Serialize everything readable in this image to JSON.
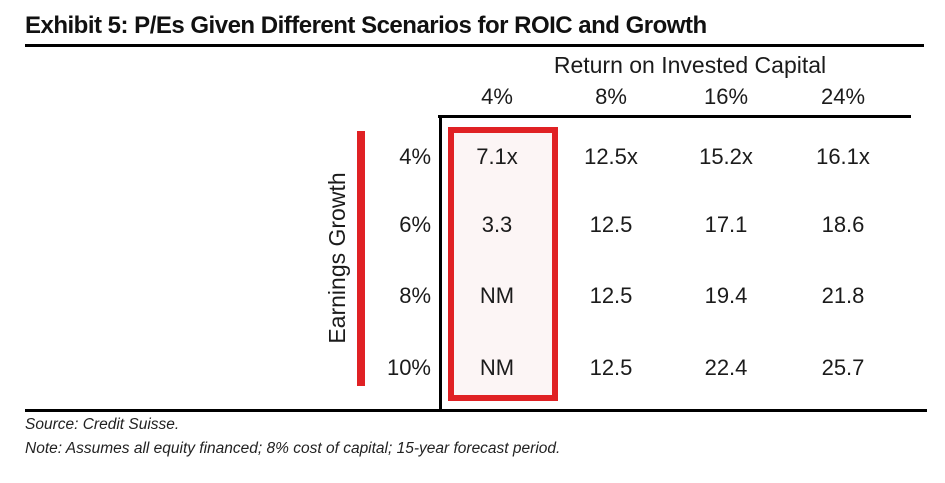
{
  "title": "Exhibit 5: P/Es Given Different Scenarios for ROIC and Growth",
  "colors": {
    "accent_red": "#e02124",
    "text": "#1b1b1b",
    "line": "#000000"
  },
  "chart_data": {
    "type": "table",
    "title": "Exhibit 5: P/Es Given Different Scenarios for ROIC and Growth",
    "column_group_label": "Return on Invested Capital",
    "row_group_label": "Earnings Growth",
    "columns": [
      "4%",
      "8%",
      "16%",
      "24%"
    ],
    "rows": [
      {
        "label": "4%",
        "values": [
          "7.1x",
          "12.5x",
          "15.2x",
          "16.1x"
        ]
      },
      {
        "label": "6%",
        "values": [
          "3.3",
          "12.5",
          "17.1",
          "18.6"
        ]
      },
      {
        "label": "8%",
        "values": [
          "NM",
          "12.5",
          "19.4",
          "21.8"
        ]
      },
      {
        "label": "10%",
        "values": [
          "NM",
          "12.5",
          "22.4",
          "25.7"
        ]
      }
    ],
    "highlight_note": "ROIC 4% data column outlined in red"
  },
  "footer": {
    "source": "Source: Credit Suisse.",
    "note": "Note: Assumes all equity financed; 8% cost of capital; 15-year forecast period."
  }
}
